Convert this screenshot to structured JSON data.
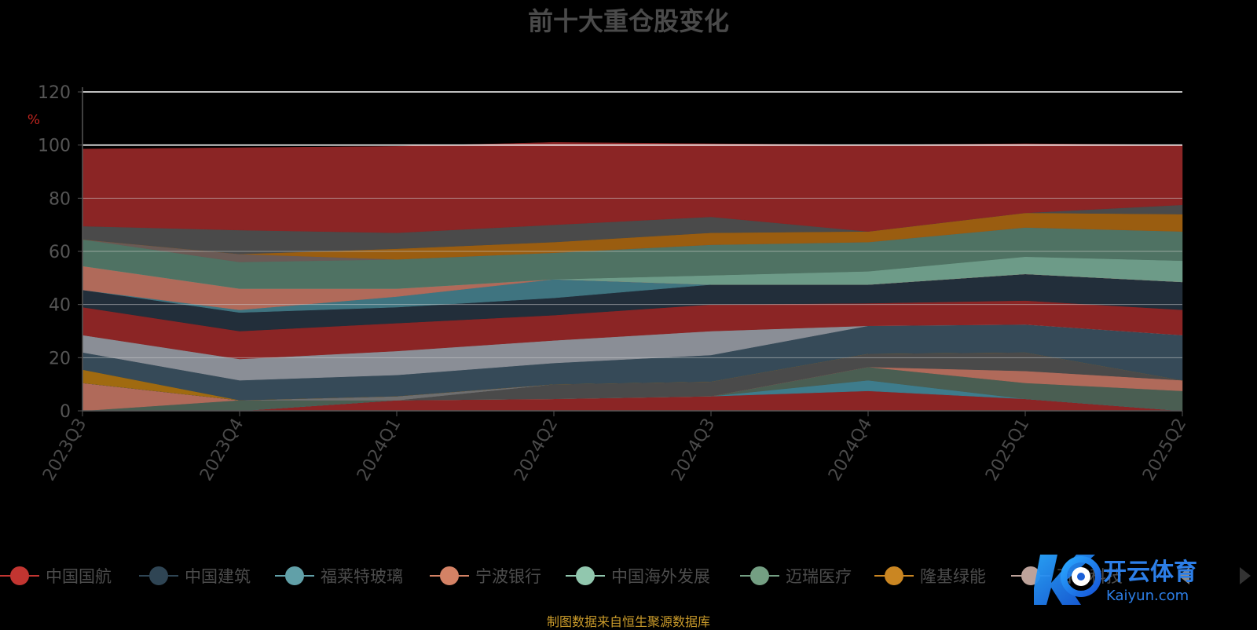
{
  "chart_data": {
    "type": "area",
    "stacked": true,
    "title": "前十大重仓股变化",
    "ylabel": "%",
    "ylim": [
      0,
      120
    ],
    "yticks": [
      0,
      20,
      40,
      60,
      80,
      100,
      120
    ],
    "grid": true,
    "categories": [
      "2023Q3",
      "2023Q4",
      "2024Q1",
      "2024Q2",
      "2024Q3",
      "2024Q4",
      "2025Q1",
      "2025Q2"
    ],
    "layers": [
      {
        "color": "#8b2525",
        "values": [
          0,
          0,
          4,
          4.5,
          5.5,
          7.5,
          4.5,
          0
        ]
      },
      {
        "color": "#3e7c8c",
        "values": [
          0,
          0,
          0,
          0,
          0,
          4,
          0,
          0
        ]
      },
      {
        "color": "#4a5e52",
        "values": [
          0,
          4,
          0,
          0,
          0,
          5,
          6,
          7.5
        ]
      },
      {
        "color": "#b06a5a",
        "values": [
          10.5,
          0,
          0,
          0,
          0,
          0,
          4.5,
          4
        ]
      },
      {
        "color": "#4a4a4a",
        "values": [
          0,
          0,
          0,
          5.5,
          5.5,
          5,
          7,
          0
        ]
      },
      {
        "color": "#6a6a6a",
        "values": [
          0,
          0,
          0,
          0,
          0,
          0,
          0,
          0
        ]
      },
      {
        "color": "#6e6e6e",
        "values": [
          0,
          0,
          1.5,
          0,
          0,
          0,
          0,
          0
        ]
      },
      {
        "color": "#333e48",
        "values": [
          0,
          0,
          0,
          0,
          0,
          0,
          0,
          0
        ]
      },
      {
        "color": "#4d4d4d",
        "values": [
          0,
          0,
          0,
          0,
          0,
          0,
          0,
          0
        ]
      },
      {
        "color": "#a06a10",
        "values": [
          5,
          0,
          0,
          0,
          0,
          0,
          0,
          0
        ]
      },
      {
        "color": "#364a58",
        "values": [
          6.5,
          7.5,
          8,
          8,
          10,
          10.5,
          10.5,
          17
        ]
      },
      {
        "color": "#8a8e96",
        "values": [
          6.5,
          8,
          9,
          8.5,
          9,
          0,
          0,
          0
        ]
      },
      {
        "color": "#8b2525",
        "values": [
          10.5,
          10.5,
          10.5,
          9.5,
          10,
          8.5,
          9,
          9.5
        ]
      },
      {
        "color": "#222e3a",
        "values": [
          6.5,
          7,
          6,
          6.5,
          7.5,
          7,
          10,
          10.5
        ]
      },
      {
        "color": "#3f7480",
        "values": [
          0,
          1,
          4,
          7,
          0,
          0,
          0,
          0
        ]
      },
      {
        "color": "#b06a5a",
        "values": [
          9,
          8,
          3,
          0,
          0,
          0,
          0,
          0
        ]
      },
      {
        "color": "#6d9b88",
        "values": [
          0,
          0,
          0,
          0,
          3.5,
          5,
          6.5,
          8
        ]
      },
      {
        "color": "#4f7263",
        "values": [
          10,
          10,
          11,
          10,
          11.5,
          11,
          11,
          11
        ]
      },
      {
        "color": "#6a5a55",
        "values": [
          0,
          3,
          0,
          0,
          0,
          0,
          0,
          0
        ]
      },
      {
        "color": "#9a5d10",
        "values": [
          0,
          0,
          4,
          4,
          4.5,
          4,
          5.5,
          6.5
        ]
      },
      {
        "color": "#4a4a4a",
        "values": [
          5,
          9,
          6,
          6.5,
          6,
          0,
          0,
          3.5
        ]
      },
      {
        "color": "#8b2525",
        "values": [
          29,
          31,
          32.5,
          31,
          27.5,
          32.5,
          26,
          22.5
        ]
      }
    ],
    "legend": [
      {
        "name": "中国国航",
        "color": "#c23531"
      },
      {
        "name": "中国建筑",
        "color": "#2f4554"
      },
      {
        "name": "福莱特玻璃",
        "color": "#61a0a8"
      },
      {
        "name": "宁波银行",
        "color": "#d48265"
      },
      {
        "name": "中国海外发展",
        "color": "#91c7ae"
      },
      {
        "name": "迈瑞医疗",
        "color": "#749f83"
      },
      {
        "name": "隆基绿能",
        "color": "#ca8622"
      },
      {
        "name": "百济科技",
        "color": "#bda29a"
      }
    ]
  },
  "watermark": {
    "name": "开云体育",
    "domain": "Kaiyun.com"
  },
  "footer": "制图数据来自恒生聚源数据库"
}
